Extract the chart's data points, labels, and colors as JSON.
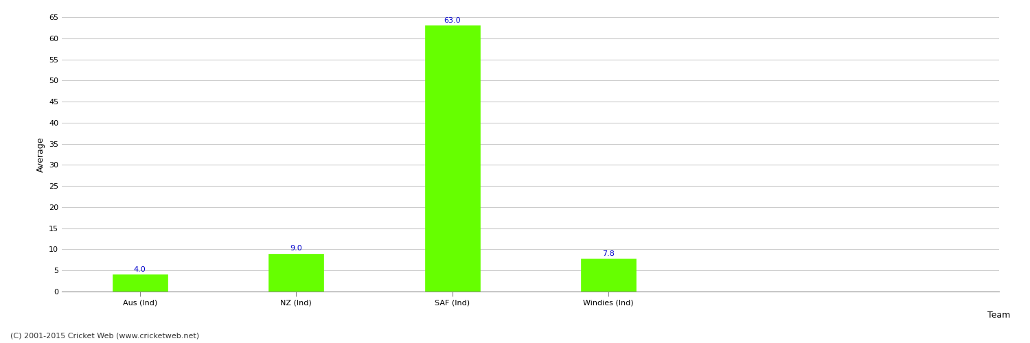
{
  "categories": [
    "Aus (Ind)",
    "NZ (Ind)",
    "SAF (Ind)",
    "Windies (Ind)"
  ],
  "values": [
    4.0,
    9.0,
    63.0,
    7.8
  ],
  "bar_color": "#66ff00",
  "bar_edgecolor": "#66ff00",
  "xlabel": "Team",
  "ylabel": "Average",
  "ylim": [
    0,
    65
  ],
  "yticks": [
    0,
    5,
    10,
    15,
    20,
    25,
    30,
    35,
    40,
    45,
    50,
    55,
    60,
    65
  ],
  "value_label_color": "#0000cc",
  "value_label_fontsize": 8,
  "axis_label_fontsize": 9,
  "tick_fontsize": 8,
  "grid_color": "#cccccc",
  "background_color": "#ffffff",
  "footer_text": "(C) 2001-2015 Cricket Web (www.cricketweb.net)",
  "footer_fontsize": 8,
  "bar_width": 0.35
}
